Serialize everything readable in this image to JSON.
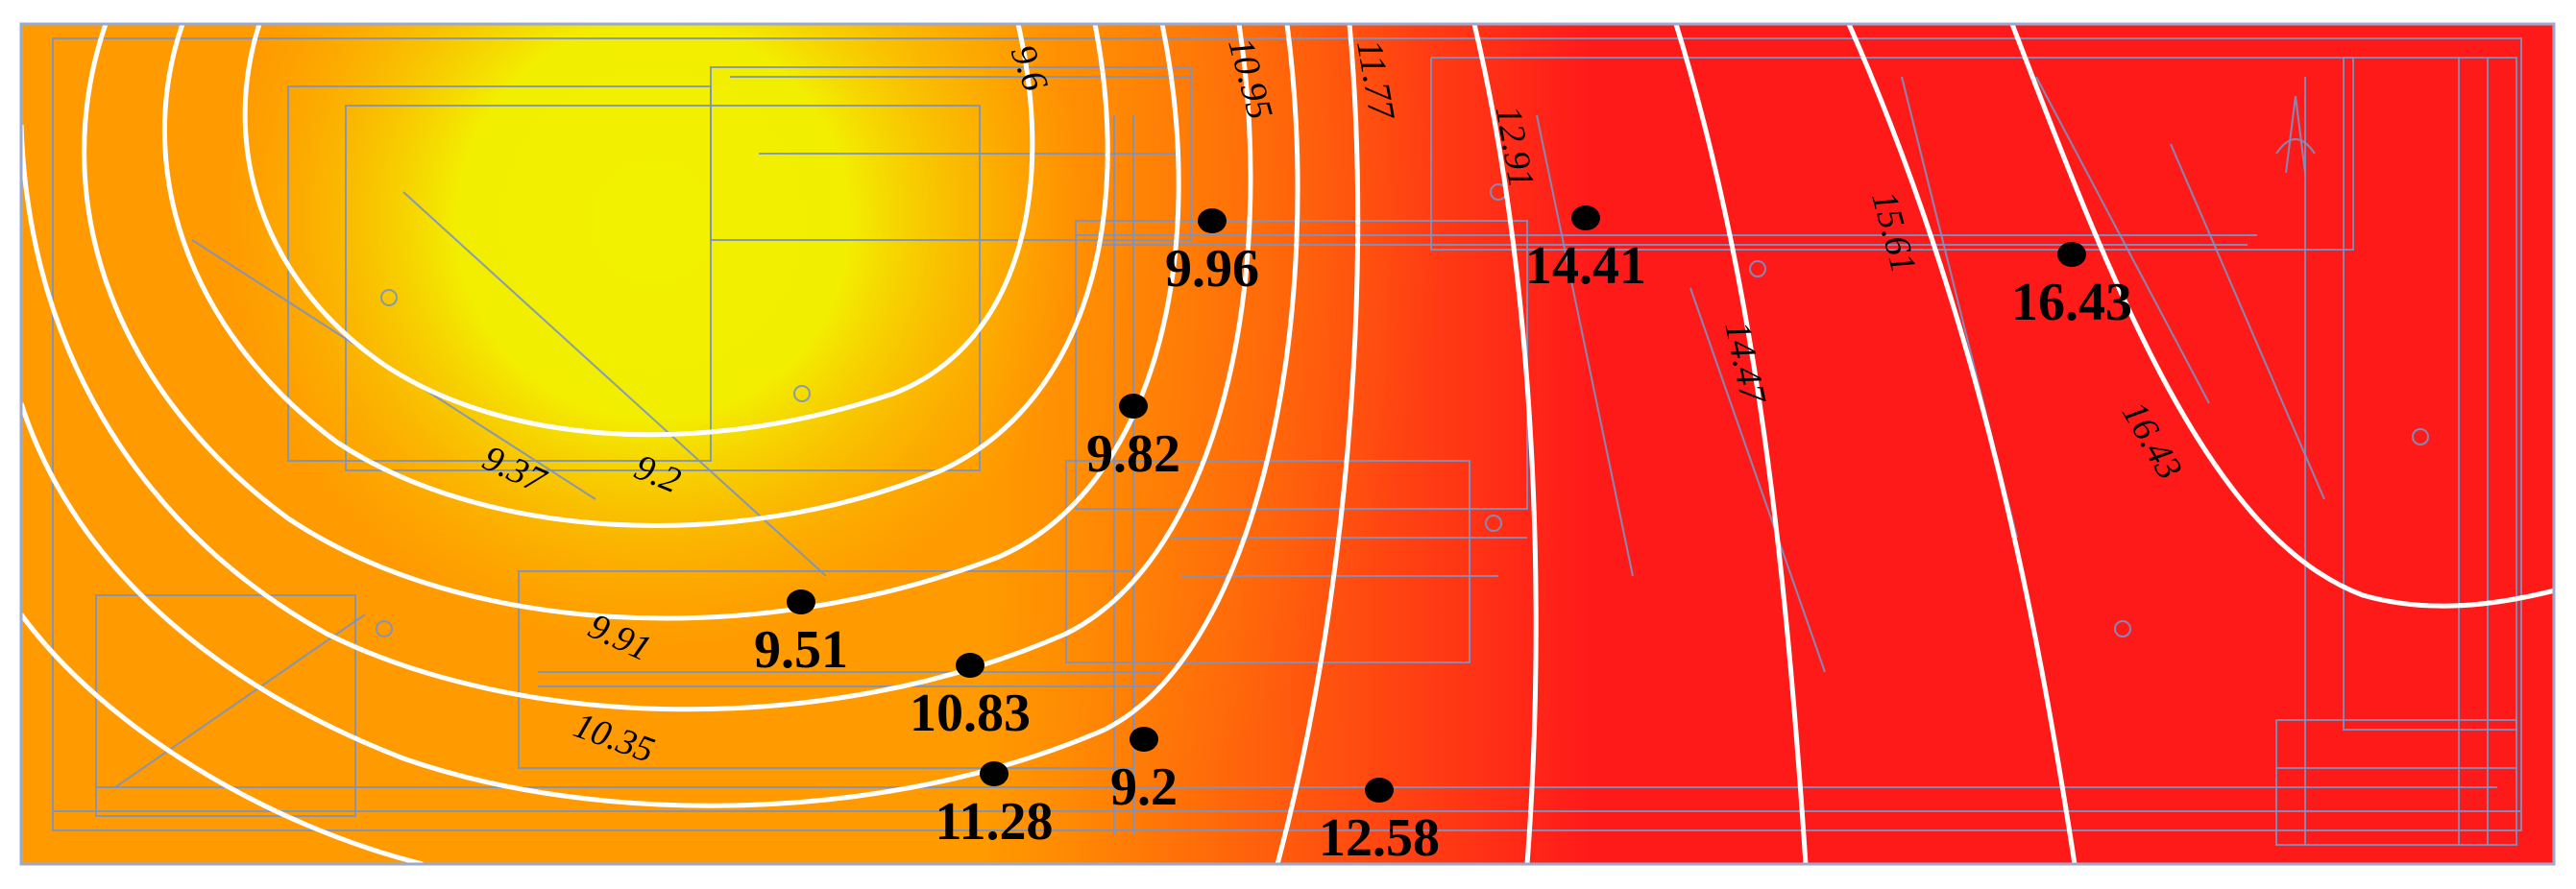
{
  "chart_data": {
    "type": "heatmap",
    "subtype": "contour",
    "colors": {
      "low": "#f2f200",
      "mid": "#ff9a00",
      "high": "#ff1a1a",
      "isoline": "#ffffff",
      "floorplan": "#7a93c4"
    },
    "points": [
      {
        "label": "9.96",
        "value": 9.96
      },
      {
        "label": "14.41",
        "value": 14.41
      },
      {
        "label": "16.43",
        "value": 16.43
      },
      {
        "label": "9.82",
        "value": 9.82
      },
      {
        "label": "9.51",
        "value": 9.51
      },
      {
        "label": "10.83",
        "value": 10.83
      },
      {
        "label": "9.2",
        "value": 9.2
      },
      {
        "label": "11.28",
        "value": 11.28
      },
      {
        "label": "12.58",
        "value": 12.58
      }
    ],
    "isolines": [
      {
        "label": "9.2",
        "value": 9.2
      },
      {
        "label": "9.37",
        "value": 9.37
      },
      {
        "label": "9.6",
        "value": 9.6
      },
      {
        "label": "9.91",
        "value": 9.91
      },
      {
        "label": "10.35",
        "value": 10.35
      },
      {
        "label": "10.95",
        "value": 10.95
      },
      {
        "label": "11.77",
        "value": 11.77
      },
      {
        "label": "12.91",
        "value": 12.91
      },
      {
        "label": "14.47",
        "value": 14.47
      },
      {
        "label": "15.61",
        "value": 15.61
      },
      {
        "label": "16.43",
        "value": 16.43
      }
    ]
  }
}
